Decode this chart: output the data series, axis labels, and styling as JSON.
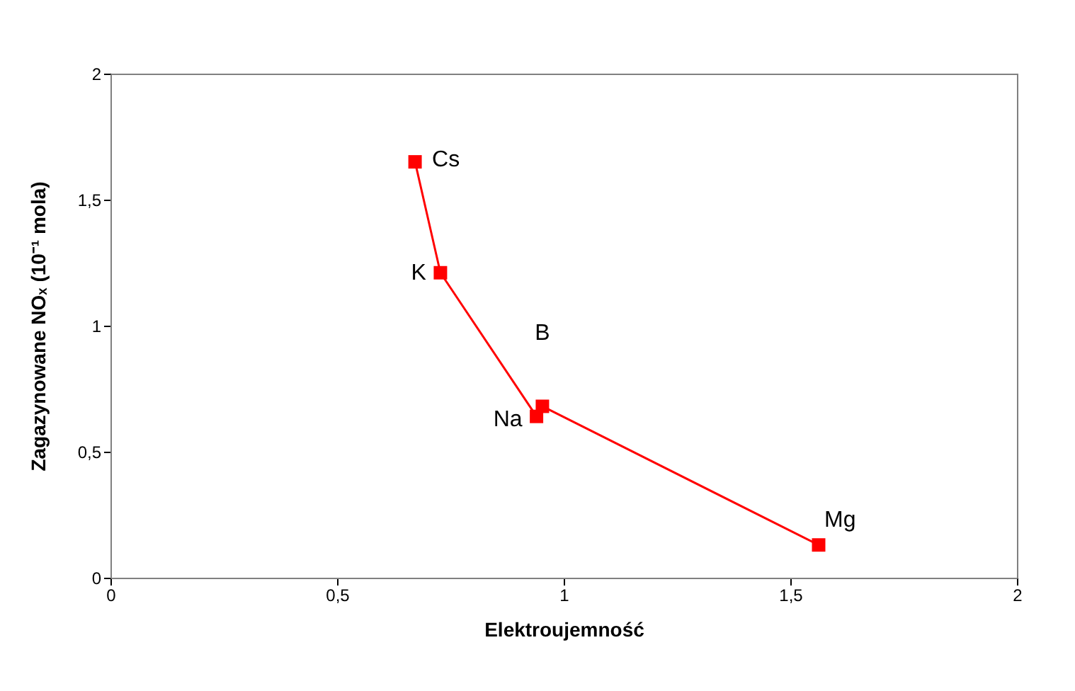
{
  "chart_data": {
    "type": "line",
    "xlabel": "Elektroujemność",
    "ylabel": "Zagazynowane NOₓ (10⁻¹ mola)",
    "x": [
      0.672,
      0.728,
      0.94,
      0.953,
      1.5625
    ],
    "series": [
      {
        "color": "#ff0000",
        "values": [
          1.65,
          1.21,
          0.64,
          0.68,
          0.13
        ]
      }
    ],
    "marker": "square",
    "line_style": "solid",
    "grid": false,
    "xlim": [
      0,
      2
    ],
    "xticks": [
      0,
      {
        "value": 0.5,
        "label": "0,5"
      },
      1,
      {
        "value": 1.5,
        "label": "1,5"
      },
      2
    ],
    "ylim": [
      0,
      2
    ],
    "yticks": [
      0,
      {
        "value": 0.5,
        "label": "0,5"
      },
      1,
      {
        "value": 1.5,
        "label": "1,5"
      },
      2
    ],
    "annotations": [
      {
        "text": "Cs",
        "x": 0.672,
        "y": 1.65
      },
      {
        "text": "K",
        "x": 0.728,
        "y": 1.21
      },
      {
        "text": "Na",
        "x": 0.94,
        "y": 0.64
      },
      {
        "text": "B",
        "x": 0.953,
        "y": 0.68
      },
      {
        "text": "Mg",
        "x": 1.5625,
        "y": 0.13
      }
    ]
  }
}
